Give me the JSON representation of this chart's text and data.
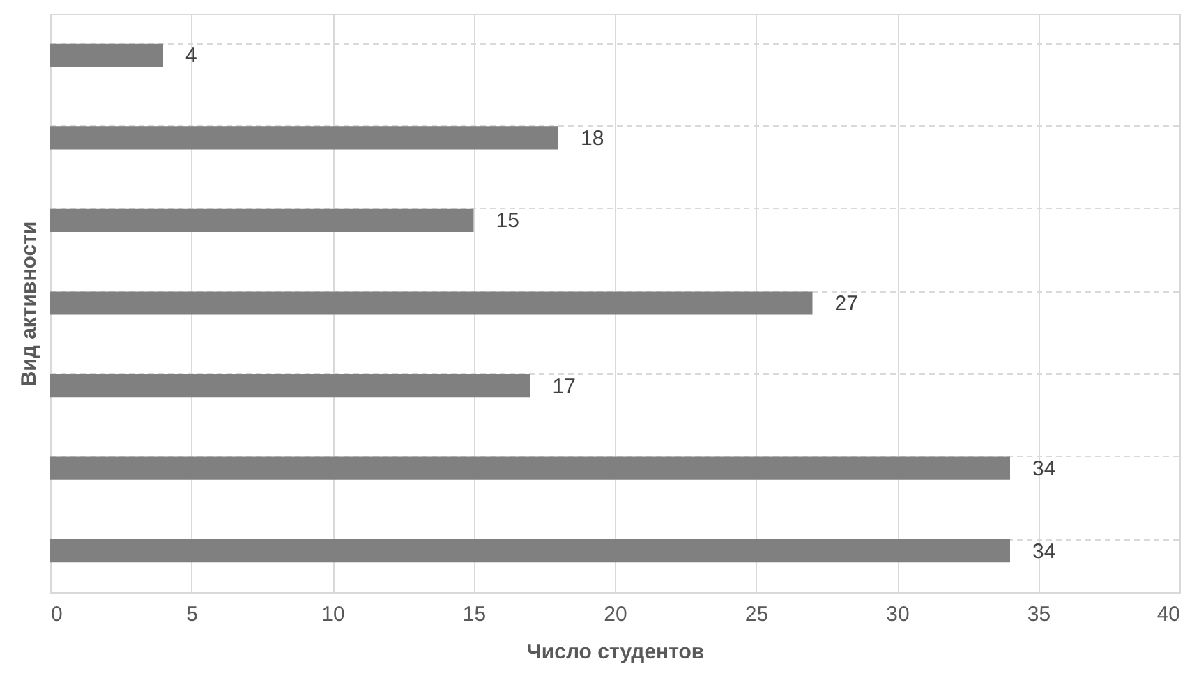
{
  "chart_data": {
    "type": "bar",
    "orientation": "horizontal",
    "xlabel": "Число студентов",
    "ylabel": "Вид активности",
    "categories": [
      null,
      null,
      null,
      null,
      null,
      null,
      null
    ],
    "values": [
      4,
      18,
      15,
      27,
      17,
      34,
      34
    ],
    "color": "#808080",
    "xlim": [
      0,
      40
    ],
    "xticks": [
      0,
      5,
      10,
      15,
      20,
      25,
      30,
      35,
      40
    ],
    "grid": true,
    "data_labels": true
  }
}
